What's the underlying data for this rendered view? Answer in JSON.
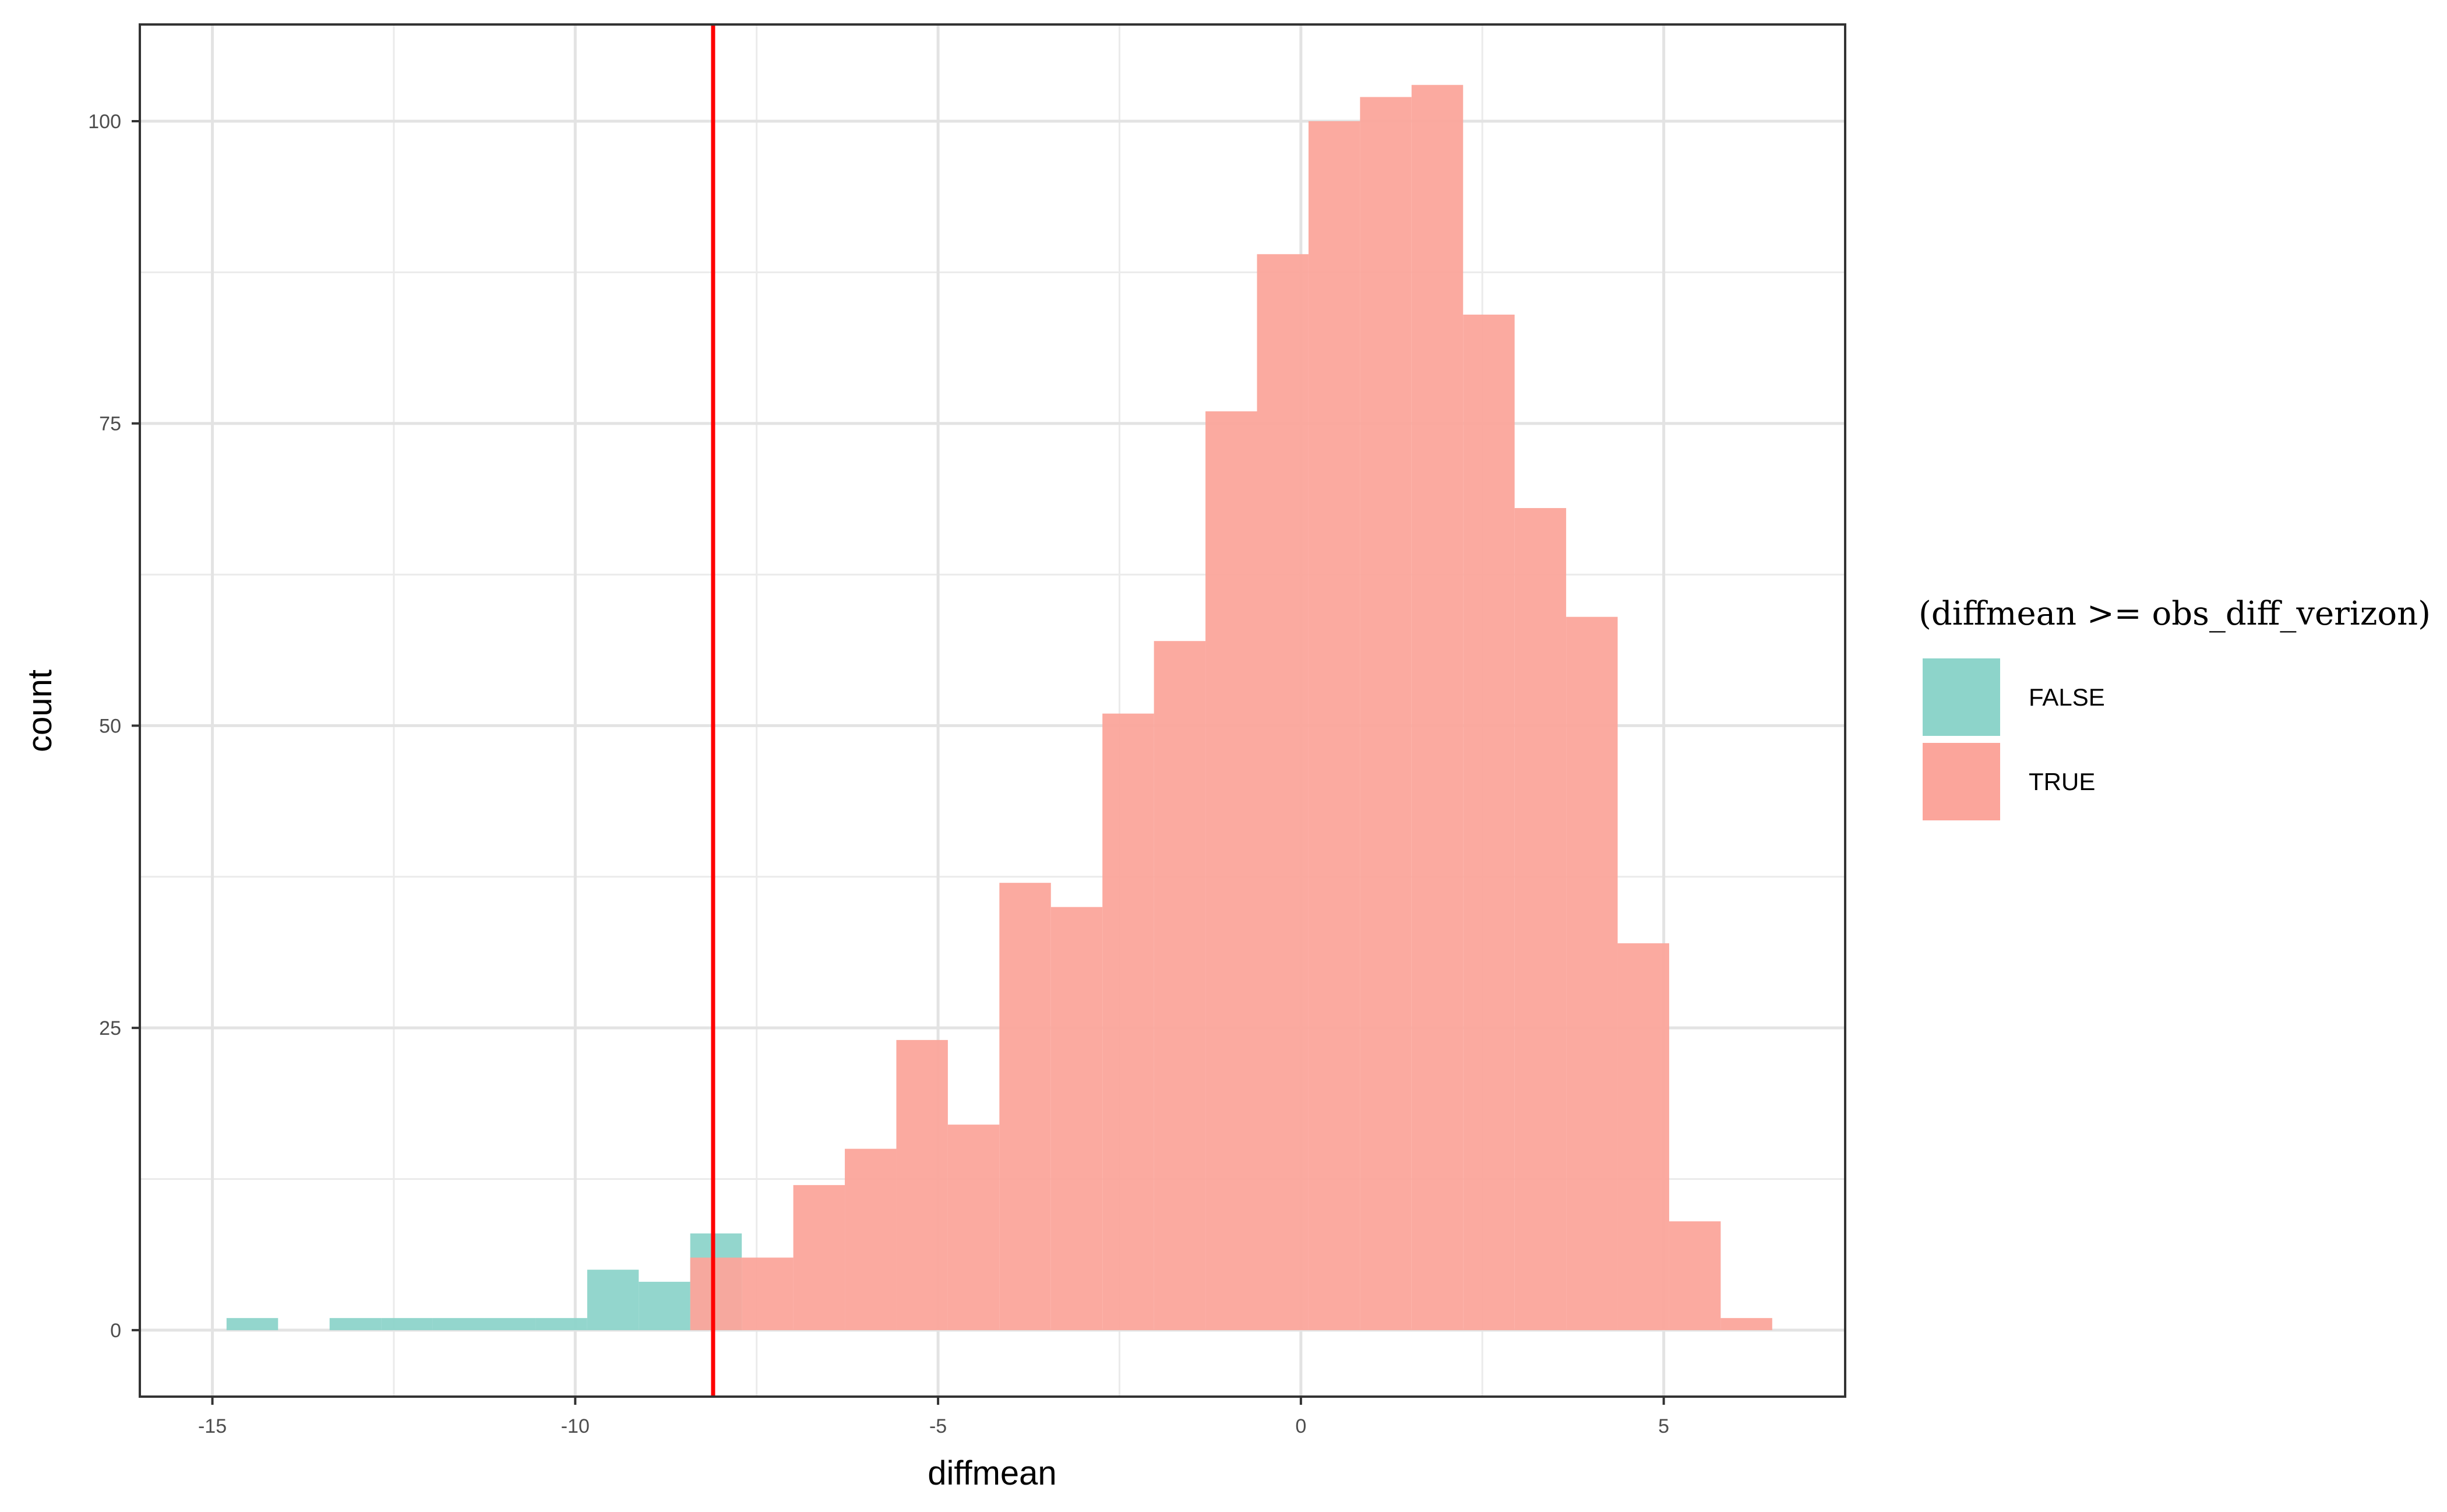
{
  "chart_data": {
    "type": "bar",
    "xlabel": "diffmean",
    "ylabel": "count",
    "xlim": [
      -16,
      7.5
    ],
    "ylim": [
      -5.5,
      108
    ],
    "x_ticks": [
      -15,
      -10,
      -5,
      0,
      5
    ],
    "x_tick_labels": [
      "-15",
      "-10",
      "-5",
      "0",
      "5"
    ],
    "y_ticks": [
      0,
      25,
      50,
      75,
      100
    ],
    "y_tick_labels": [
      "0",
      "25",
      "50",
      "75",
      "100"
    ],
    "grid": true,
    "legend": {
      "title": "(diffmean >= obs_diff_verizon)",
      "position": "right",
      "entries": [
        "FALSE",
        "TRUE"
      ]
    },
    "vline": {
      "x": -8.1,
      "color": "#ff0000"
    },
    "bin_width": 0.71,
    "series": [
      {
        "name": "FALSE",
        "color": "#8dd4ca",
        "bins": [
          {
            "x": -14.45,
            "count": 1
          },
          {
            "x": -13.03,
            "count": 1
          },
          {
            "x": -12.32,
            "count": 1
          },
          {
            "x": -11.61,
            "count": 1
          },
          {
            "x": -10.9,
            "count": 1
          },
          {
            "x": -10.19,
            "count": 1
          },
          {
            "x": -9.48,
            "count": 5
          },
          {
            "x": -8.77,
            "count": 4
          },
          {
            "x": -8.06,
            "count": 8
          }
        ]
      },
      {
        "name": "TRUE",
        "color": "#fba59b",
        "bins": [
          {
            "x": -8.06,
            "count": 6
          },
          {
            "x": -7.35,
            "count": 6
          },
          {
            "x": -6.64,
            "count": 12
          },
          {
            "x": -5.93,
            "count": 15
          },
          {
            "x": -5.22,
            "count": 24
          },
          {
            "x": -4.51,
            "count": 17
          },
          {
            "x": -3.8,
            "count": 37
          },
          {
            "x": -3.09,
            "count": 35
          },
          {
            "x": -2.38,
            "count": 51
          },
          {
            "x": -1.67,
            "count": 57
          },
          {
            "x": -0.96,
            "count": 76
          },
          {
            "x": -0.25,
            "count": 89
          },
          {
            "x": 0.46,
            "count": 100
          },
          {
            "x": 1.17,
            "count": 102
          },
          {
            "x": 1.88,
            "count": 103
          },
          {
            "x": 2.59,
            "count": 84
          },
          {
            "x": 3.3,
            "count": 68
          },
          {
            "x": 4.01,
            "count": 59
          },
          {
            "x": 4.72,
            "count": 32
          },
          {
            "x": 5.43,
            "count": 9
          },
          {
            "x": 6.14,
            "count": 1
          }
        ]
      }
    ]
  }
}
